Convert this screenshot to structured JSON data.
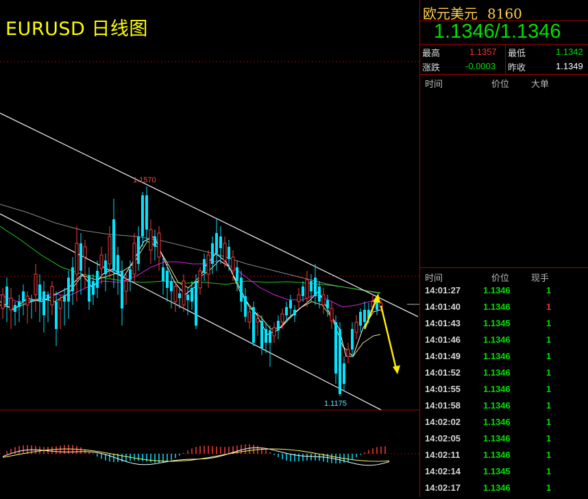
{
  "chart": {
    "title": "EURUSD 日线图",
    "high_label": "1.1570",
    "low_label": "1.1175"
  },
  "chart_data": {
    "type": "candlestick",
    "title": "EURUSD 日线图",
    "symbol": "EURUSD",
    "period": "daily",
    "annotations": [
      {
        "text": "1.1570",
        "kind": "swing-high"
      },
      {
        "text": "1.1175",
        "kind": "swing-low"
      }
    ],
    "price_range": [
      1.1175,
      1.157
    ],
    "overlays": [
      "moving-average-yellow",
      "moving-average-magenta",
      "moving-average-green",
      "moving-average-gray",
      "descending-channel"
    ],
    "forecast_arrows": [
      "up",
      "down"
    ],
    "subpanel": "MACD histogram with signal lines",
    "colors": {
      "up": "#ff3b3b",
      "down": "#00e5ff",
      "background": "#000000"
    }
  },
  "panel": {
    "name": "欧元美元",
    "code": "8160",
    "price": "1.1346/1.1346",
    "stats": {
      "high_label": "最高",
      "high_value": "1.1357",
      "low_label": "最低",
      "low_value": "1.1342",
      "change_label": "涨跌",
      "change_value": "-0.0003",
      "prev_label": "昨收",
      "prev_value": "1.1349"
    },
    "top_headers": {
      "time": "时间",
      "price": "价位",
      "big": "大单"
    },
    "tick_headers": {
      "time": "时间",
      "price": "价位",
      "volume": "现手"
    },
    "ticks": [
      {
        "time": "14:01:27",
        "price": "1.1346",
        "volume": "1",
        "color": "#00e000"
      },
      {
        "time": "14:01:40",
        "price": "1.1346",
        "volume": "1",
        "color": "#ff3030"
      },
      {
        "time": "14:01:43",
        "price": "1.1345",
        "volume": "1",
        "color": "#00e000"
      },
      {
        "time": "14:01:46",
        "price": "1.1346",
        "volume": "1",
        "color": "#00e000"
      },
      {
        "time": "14:01:49",
        "price": "1.1346",
        "volume": "1",
        "color": "#00e000"
      },
      {
        "time": "14:01:52",
        "price": "1.1346",
        "volume": "1",
        "color": "#00e000"
      },
      {
        "time": "14:01:55",
        "price": "1.1346",
        "volume": "1",
        "color": "#00e000"
      },
      {
        "time": "14:01:58",
        "price": "1.1346",
        "volume": "1",
        "color": "#00e000"
      },
      {
        "time": "14:02:02",
        "price": "1.1346",
        "volume": "1",
        "color": "#00e000"
      },
      {
        "time": "14:02:05",
        "price": "1.1346",
        "volume": "1",
        "color": "#00e000"
      },
      {
        "time": "14:02:11",
        "price": "1.1346",
        "volume": "1",
        "color": "#00e000"
      },
      {
        "time": "14:02:14",
        "price": "1.1345",
        "volume": "1",
        "color": "#00e000"
      },
      {
        "time": "14:02:17",
        "price": "1.1346",
        "volume": "1",
        "color": "#00e000"
      }
    ]
  }
}
